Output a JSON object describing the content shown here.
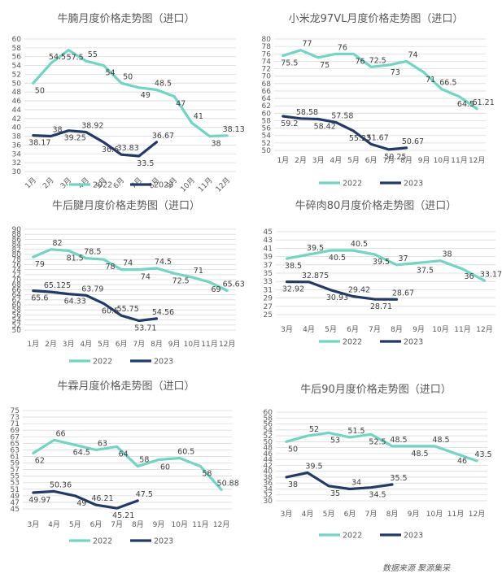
{
  "colors": {
    "s2022": "#6fd6c3",
    "s2023": "#1f3a6b"
  },
  "legend": [
    "2022",
    "2023"
  ],
  "footer": "数据来源   聚源集采",
  "chart_data": [
    {
      "type": "line",
      "title": "牛腩月度价格走势图（进口）",
      "categories": [
        "1月",
        "2月",
        "3月",
        "4月",
        "5月",
        "6月",
        "7月",
        "8月",
        "9月",
        "10月",
        "11月",
        "12月"
      ],
      "x_rotated": true,
      "ylim": [
        30,
        60
      ],
      "ystep": 2,
      "series": [
        {
          "name": "2022",
          "values": [
            50,
            54.5,
            57.5,
            55,
            54,
            50,
            49,
            48.5,
            47,
            41,
            38,
            38.13
          ],
          "labels": [
            "50",
            "54.5",
            "57.5",
            "55",
            "54",
            "50",
            "49",
            "48.5",
            "47",
            "41",
            "38",
            "38.13"
          ]
        },
        {
          "name": "2023",
          "values": [
            38.17,
            38,
            39.25,
            38.92,
            36.6,
            33.83,
            33.5,
            36.67,
            null,
            null,
            null,
            null
          ],
          "labels": [
            "38.17",
            "38",
            "39.25",
            "38.92",
            "36.6",
            "33.83",
            "33.5",
            "36.67"
          ]
        }
      ]
    },
    {
      "type": "line",
      "title": "小米龙97VL月度价格走势图（进口）",
      "categories": [
        "1月",
        "2月",
        "3月",
        "4月",
        "5月",
        "6月",
        "7月",
        "8月",
        "9月",
        "10月",
        "11月",
        "12月"
      ],
      "x_rotated": false,
      "ylim": [
        50,
        80
      ],
      "ystep": 2,
      "series": [
        {
          "name": "2022",
          "values": [
            75.5,
            77,
            75,
            76,
            76,
            72.5,
            73,
            74,
            71,
            66.5,
            64.5,
            61.21
          ],
          "labels": [
            "75.5",
            "77",
            "75",
            "76",
            "76",
            "72.5",
            "73",
            "74",
            "71",
            "66.5",
            "64.5",
            "61.21"
          ]
        },
        {
          "name": "2023",
          "values": [
            59.2,
            58.58,
            58.42,
            57.58,
            55.23,
            51.67,
            50.25,
            50.67,
            null,
            null,
            null,
            null
          ],
          "labels": [
            "59.2",
            "58.58",
            "58.42",
            "57.58",
            "55.23",
            "51.67",
            "50.25",
            "50.67"
          ]
        }
      ]
    },
    {
      "type": "line",
      "title": "牛后腱月度价格走势图（进口）",
      "categories": [
        "1月",
        "2月",
        "3月",
        "4月",
        "5月",
        "6月",
        "7月",
        "8月",
        "9月",
        "10月",
        "11月",
        "12月"
      ],
      "x_rotated": false,
      "ylim": [
        50,
        90
      ],
      "ystep": 2,
      "series": [
        {
          "name": "2022",
          "values": [
            79,
            82,
            81.5,
            78.5,
            78,
            74,
            74,
            74.5,
            72.5,
            71,
            69,
            65.63
          ],
          "labels": [
            "79",
            "82",
            "81.5",
            "78.5",
            "78",
            "74",
            "74",
            "74.5",
            "72.5",
            "71",
            "69",
            "65.63"
          ]
        },
        {
          "name": "2023",
          "values": [
            65.6,
            65.125,
            64.33,
            63.79,
            60.5,
            55.75,
            53.71,
            54.56,
            null,
            null,
            null,
            null
          ],
          "labels": [
            "65.6",
            "65.125",
            "64.33",
            "63.79",
            "60.5",
            "55.75",
            "53.71",
            "54.56"
          ]
        }
      ]
    },
    {
      "type": "line",
      "title": "牛碎肉80月度价格走势图（进口）",
      "categories": [
        "3月",
        "4月",
        "5月",
        "6月",
        "7月",
        "8月",
        "9月",
        "10月",
        "11月",
        "12月"
      ],
      "x_rotated": false,
      "ylim": [
        25,
        45
      ],
      "ystep": 2,
      "series": [
        {
          "name": "2022",
          "values": [
            38.5,
            39.5,
            40.5,
            40.5,
            39.5,
            37,
            37.5,
            38,
            36,
            33.17
          ],
          "labels": [
            "38.5",
            "39.5",
            "40.5",
            "40.5",
            "39.5",
            "37",
            "37.5",
            "38",
            "36",
            "33.17"
          ]
        },
        {
          "name": "2023",
          "values": [
            32.92,
            32.875,
            30.93,
            29.42,
            28.71,
            28.67,
            null,
            null,
            null,
            null
          ],
          "labels": [
            "32.92",
            "32.875",
            "30.93",
            "29.42",
            "28.71",
            "28.67"
          ]
        }
      ]
    },
    {
      "type": "line",
      "title": "牛霖月度价格走势图（进口）",
      "categories": [
        "3月",
        "4月",
        "5月",
        "6月",
        "7月",
        "8月",
        "9月",
        "10月",
        "11月",
        "12月"
      ],
      "x_rotated": false,
      "ylim": [
        45,
        75
      ],
      "ystep": 2,
      "series": [
        {
          "name": "2022",
          "values": [
            62,
            66,
            64.5,
            63,
            64,
            58,
            60,
            60.5,
            58,
            50.88
          ],
          "labels": [
            "62",
            "66",
            "64.5",
            "63",
            "64",
            "58",
            "60",
            "60.5",
            "58",
            "50.88"
          ]
        },
        {
          "name": "2023",
          "values": [
            49.97,
            50.36,
            49,
            46.21,
            45.21,
            47.5,
            null,
            null,
            null,
            null
          ],
          "labels": [
            "49.97",
            "50.36",
            "49",
            "46.21",
            "45.21",
            "47.5"
          ]
        }
      ]
    },
    {
      "type": "line",
      "title": "牛后90月度价格走势图（进口）",
      "categories": [
        "3月",
        "4月",
        "5月",
        "6月",
        "7月",
        "8月",
        "9月",
        "10月",
        "11月",
        "12月"
      ],
      "x_rotated": false,
      "ylim": [
        30,
        60
      ],
      "ystep": 2,
      "series": [
        {
          "name": "2022",
          "values": [
            50,
            52,
            53,
            51.5,
            52.5,
            48.5,
            48.5,
            48.5,
            46,
            43.5
          ],
          "labels": [
            "50",
            "52",
            "53",
            "51.5",
            "52.5",
            "48.5",
            "48.5",
            "48.5",
            "46",
            "43.5"
          ]
        },
        {
          "name": "2023",
          "values": [
            38,
            39.5,
            35,
            34,
            34.5,
            35.5,
            null,
            null,
            null,
            null
          ],
          "labels": [
            "38",
            "39.5",
            "35",
            "34",
            "34.5",
            "35.5"
          ]
        }
      ]
    }
  ]
}
